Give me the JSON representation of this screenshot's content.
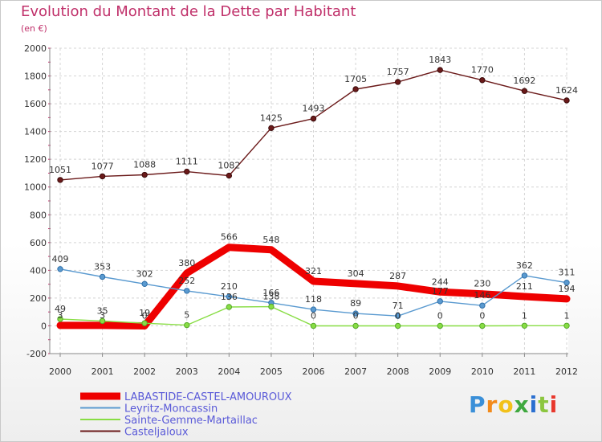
{
  "chart_data": {
    "type": "line",
    "title": "Evolution du Montant de la Dette par Habitant",
    "unit_label": "(en €)",
    "x": [
      "2000",
      "2001",
      "2002",
      "2003",
      "2004",
      "2005",
      "2006",
      "2007",
      "2008",
      "2009",
      "2010",
      "2011",
      "2012"
    ],
    "ylim": [
      -200,
      2000
    ],
    "yticks": [
      "-200",
      "0",
      "200",
      "400",
      "600",
      "800",
      "1000",
      "1200",
      "1400",
      "1600",
      "1800",
      "2000"
    ],
    "series": [
      {
        "name": "LABASTIDE-CASTEL-AMOUROUX",
        "color": "#ee0000",
        "values": [
          3,
          3,
          0,
          380,
          566,
          548,
          321,
          304,
          287,
          244,
          230,
          211,
          194
        ],
        "labels": [
          "3",
          "3",
          "0",
          "380",
          "566",
          "548",
          "321",
          "304",
          "287",
          "244",
          "230",
          "211",
          "194"
        ]
      },
      {
        "name": "Leyritz-Moncassin",
        "color": "#5a9ad0",
        "values": [
          409,
          353,
          302,
          252,
          210,
          166,
          118,
          89,
          71,
          177,
          146,
          362,
          311
        ],
        "labels": [
          "409",
          "353",
          "302",
          "252",
          "210",
          "166",
          "118",
          "89",
          "71",
          "177",
          "146",
          "362",
          "311"
        ]
      },
      {
        "name": "Sainte-Gemme-Martaillac",
        "color": "#88dd44",
        "values": [
          49,
          35,
          19,
          5,
          136,
          138,
          0,
          0,
          0,
          0,
          0,
          1,
          1
        ],
        "labels": [
          "49",
          "35",
          "19",
          "5",
          "136",
          "138",
          "0",
          "0",
          "0",
          "0",
          "0",
          "1",
          "1"
        ]
      },
      {
        "name": "Casteljaloux",
        "color": "#6b1a1a",
        "values": [
          1051,
          1077,
          1088,
          1111,
          1082,
          1425,
          1493,
          1705,
          1757,
          1843,
          1770,
          1692,
          1624
        ],
        "labels": [
          "1051",
          "1077",
          "1088",
          "1111",
          "1082",
          "1425",
          "1493",
          "1705",
          "1757",
          "1843",
          "1770",
          "1692",
          "1624"
        ]
      }
    ]
  },
  "legend": [
    {
      "label": "LABASTIDE-CASTEL-AMOUROUX",
      "color": "#ee0000"
    },
    {
      "label": "Leyritz-Moncassin",
      "color": "#5a9ad0"
    },
    {
      "label": "Sainte-Gemme-Martaillac",
      "color": "#88dd44"
    },
    {
      "label": "Casteljaloux",
      "color": "#6b1a1a"
    }
  ],
  "brand": {
    "letters": [
      "P",
      "r",
      "o",
      "x",
      "i",
      "t",
      "i"
    ]
  }
}
